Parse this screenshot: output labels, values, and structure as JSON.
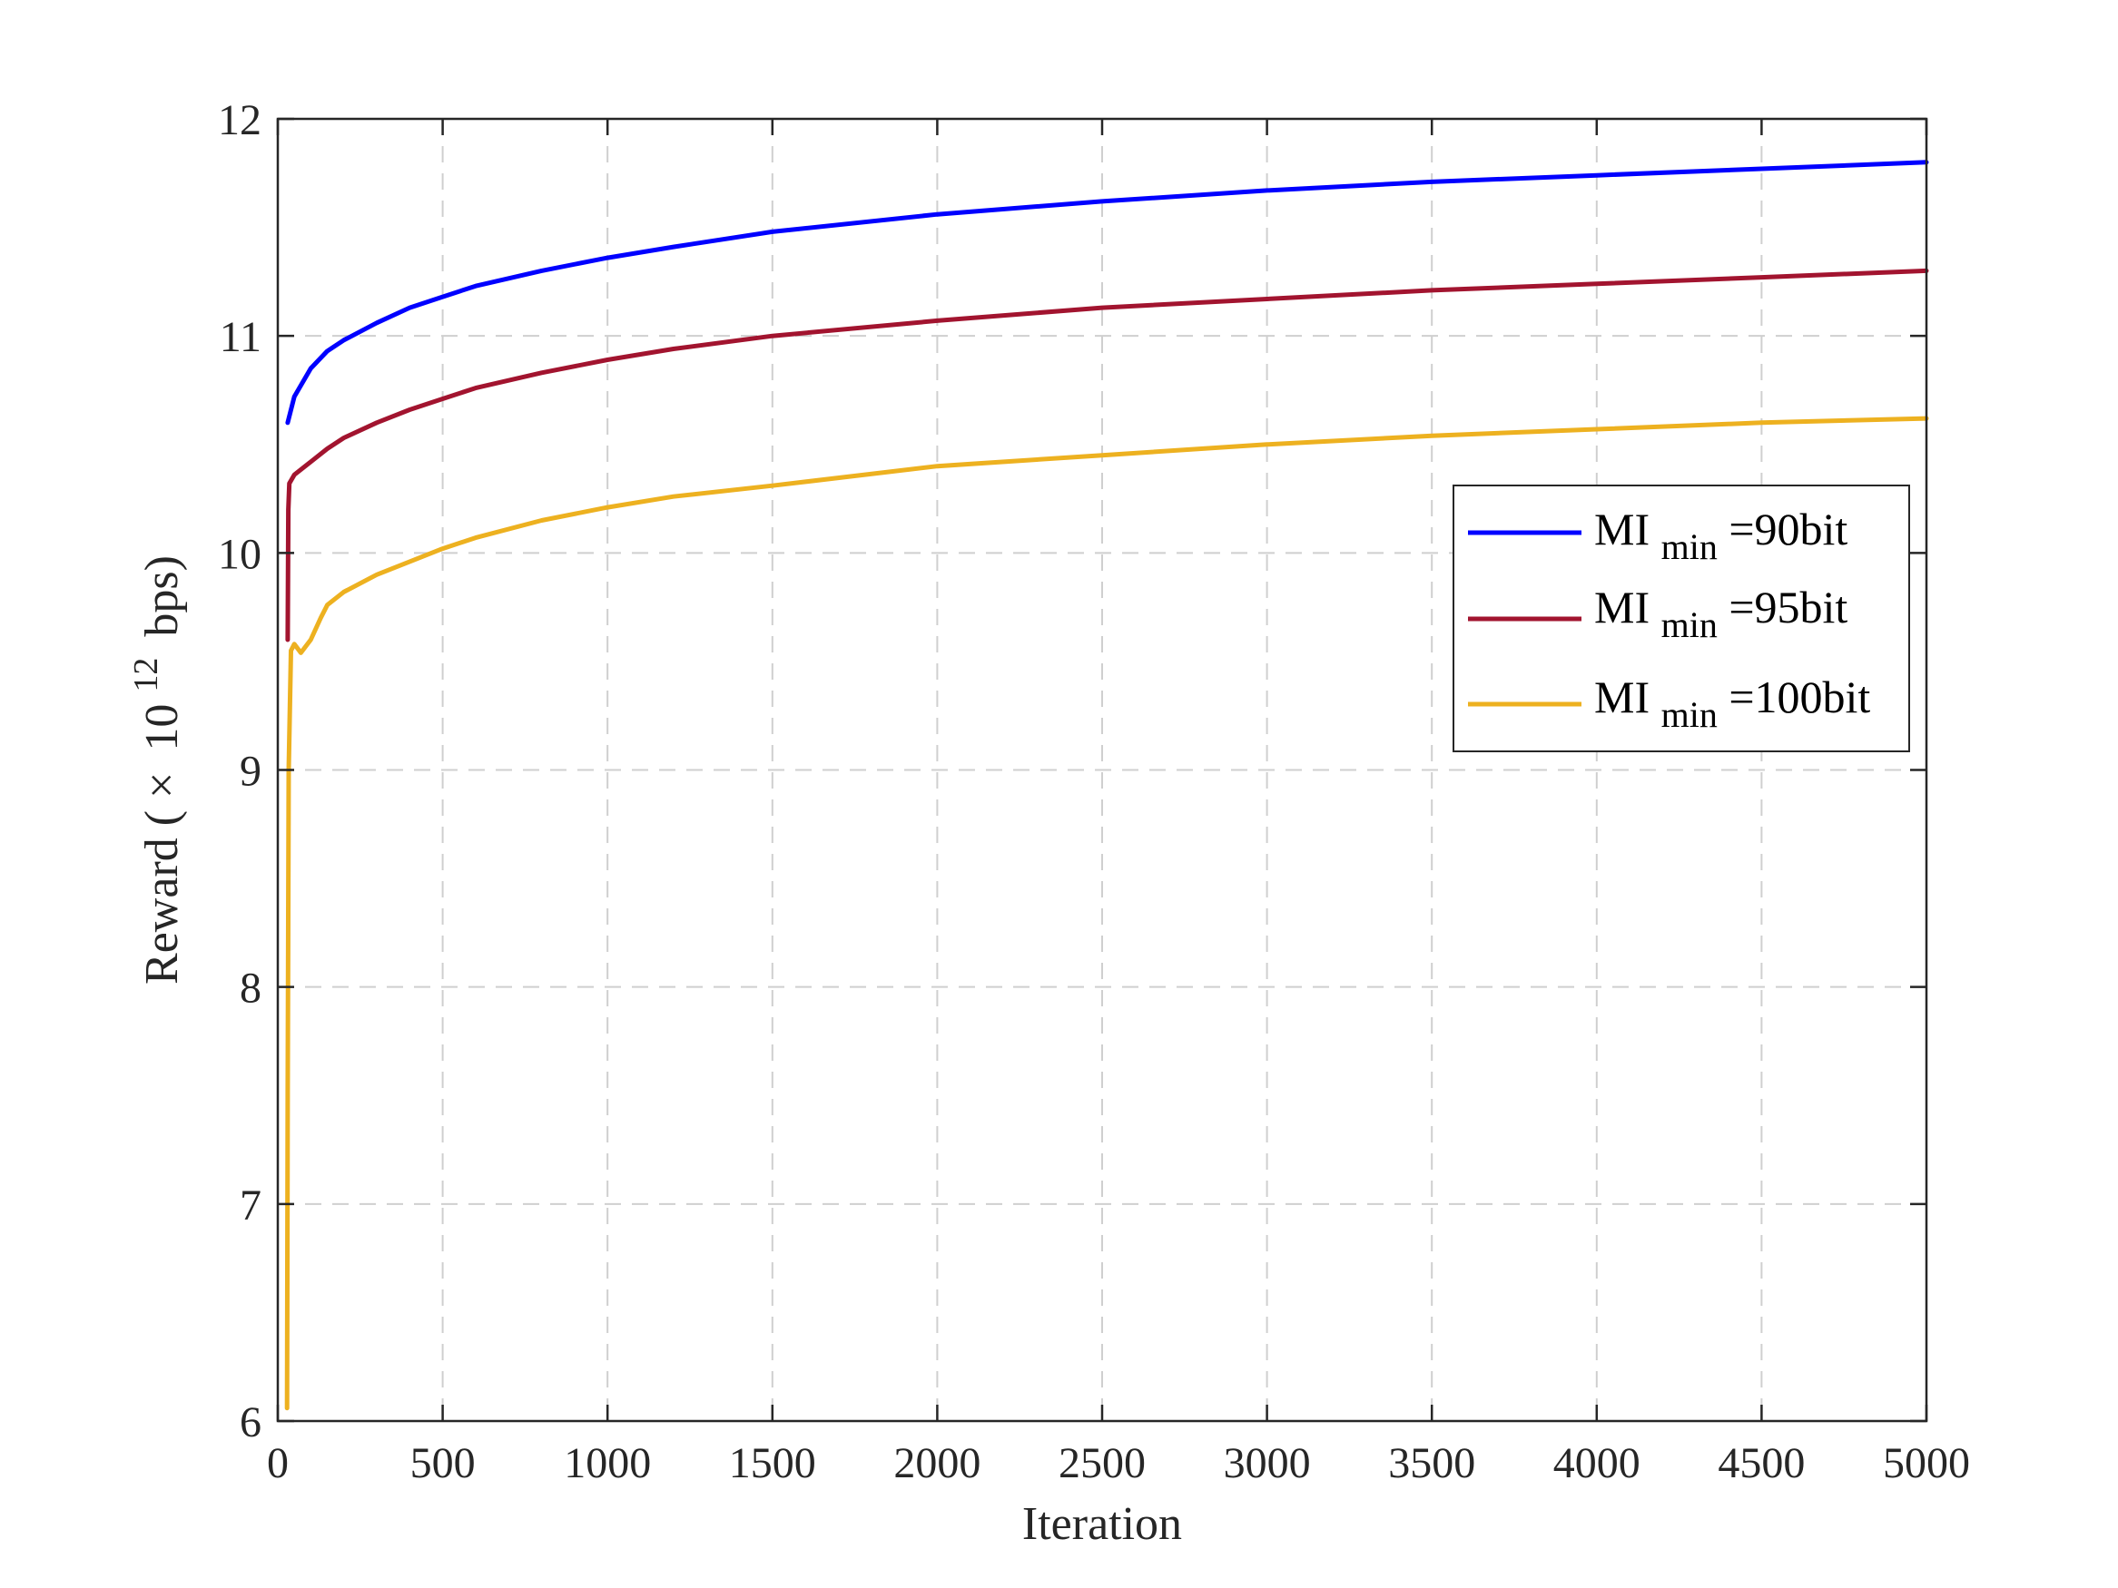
{
  "chart_data": {
    "type": "line",
    "title": "",
    "xlabel": "Iteration",
    "ylabel": {
      "main": "Reward (",
      "times": "×",
      "base": "10",
      "exp": "12",
      "unit": "bps)"
    },
    "xlim": [
      0,
      5000
    ],
    "ylim": [
      6,
      12
    ],
    "xticks": [
      0,
      500,
      1000,
      1500,
      2000,
      2500,
      3000,
      3500,
      4000,
      4500,
      5000
    ],
    "yticks": [
      6,
      7,
      8,
      9,
      10,
      11,
      12
    ],
    "grid": true,
    "legend_position": "right",
    "series": [
      {
        "name": "MI_min=90bit",
        "legend": {
          "base": "MI",
          "sub": "min",
          "rest": "=90bit"
        },
        "color": "#0000ff",
        "x": [
          30,
          50,
          100,
          150,
          200,
          300,
          400,
          500,
          600,
          800,
          1000,
          1200,
          1500,
          2000,
          2500,
          3000,
          3500,
          4000,
          4500,
          5000
        ],
        "y": [
          10.6,
          10.72,
          10.85,
          10.93,
          10.98,
          11.06,
          11.13,
          11.18,
          11.23,
          11.3,
          11.36,
          11.41,
          11.48,
          11.56,
          11.62,
          11.67,
          11.71,
          11.74,
          11.77,
          11.8
        ]
      },
      {
        "name": "MI_min=95bit",
        "legend": {
          "base": "MI",
          "sub": "min",
          "rest": "=95bit"
        },
        "color": "#a2142f",
        "x": [
          30,
          32,
          35,
          50,
          100,
          150,
          200,
          300,
          400,
          500,
          600,
          800,
          1000,
          1200,
          1500,
          2000,
          2500,
          3000,
          3500,
          4000,
          4500,
          5000
        ],
        "y": [
          9.6,
          10.2,
          10.32,
          10.36,
          10.42,
          10.48,
          10.53,
          10.6,
          10.66,
          10.71,
          10.76,
          10.83,
          10.89,
          10.94,
          11.0,
          11.07,
          11.13,
          11.17,
          11.21,
          11.24,
          11.27,
          11.3
        ]
      },
      {
        "name": "MI_min=100bit",
        "legend": {
          "base": "MI",
          "sub": "min",
          "rest": "=100bit"
        },
        "color": "#edb120",
        "x": [
          28,
          30,
          33,
          40,
          50,
          70,
          100,
          130,
          150,
          200,
          300,
          400,
          500,
          600,
          800,
          1000,
          1200,
          1500,
          2000,
          2500,
          3000,
          3500,
          4000,
          4500,
          5000
        ],
        "y": [
          6.06,
          7.5,
          9.0,
          9.55,
          9.58,
          9.54,
          9.6,
          9.7,
          9.76,
          9.82,
          9.9,
          9.96,
          10.02,
          10.07,
          10.15,
          10.21,
          10.26,
          10.31,
          10.4,
          10.45,
          10.5,
          10.54,
          10.57,
          10.6,
          10.62
        ]
      }
    ]
  }
}
